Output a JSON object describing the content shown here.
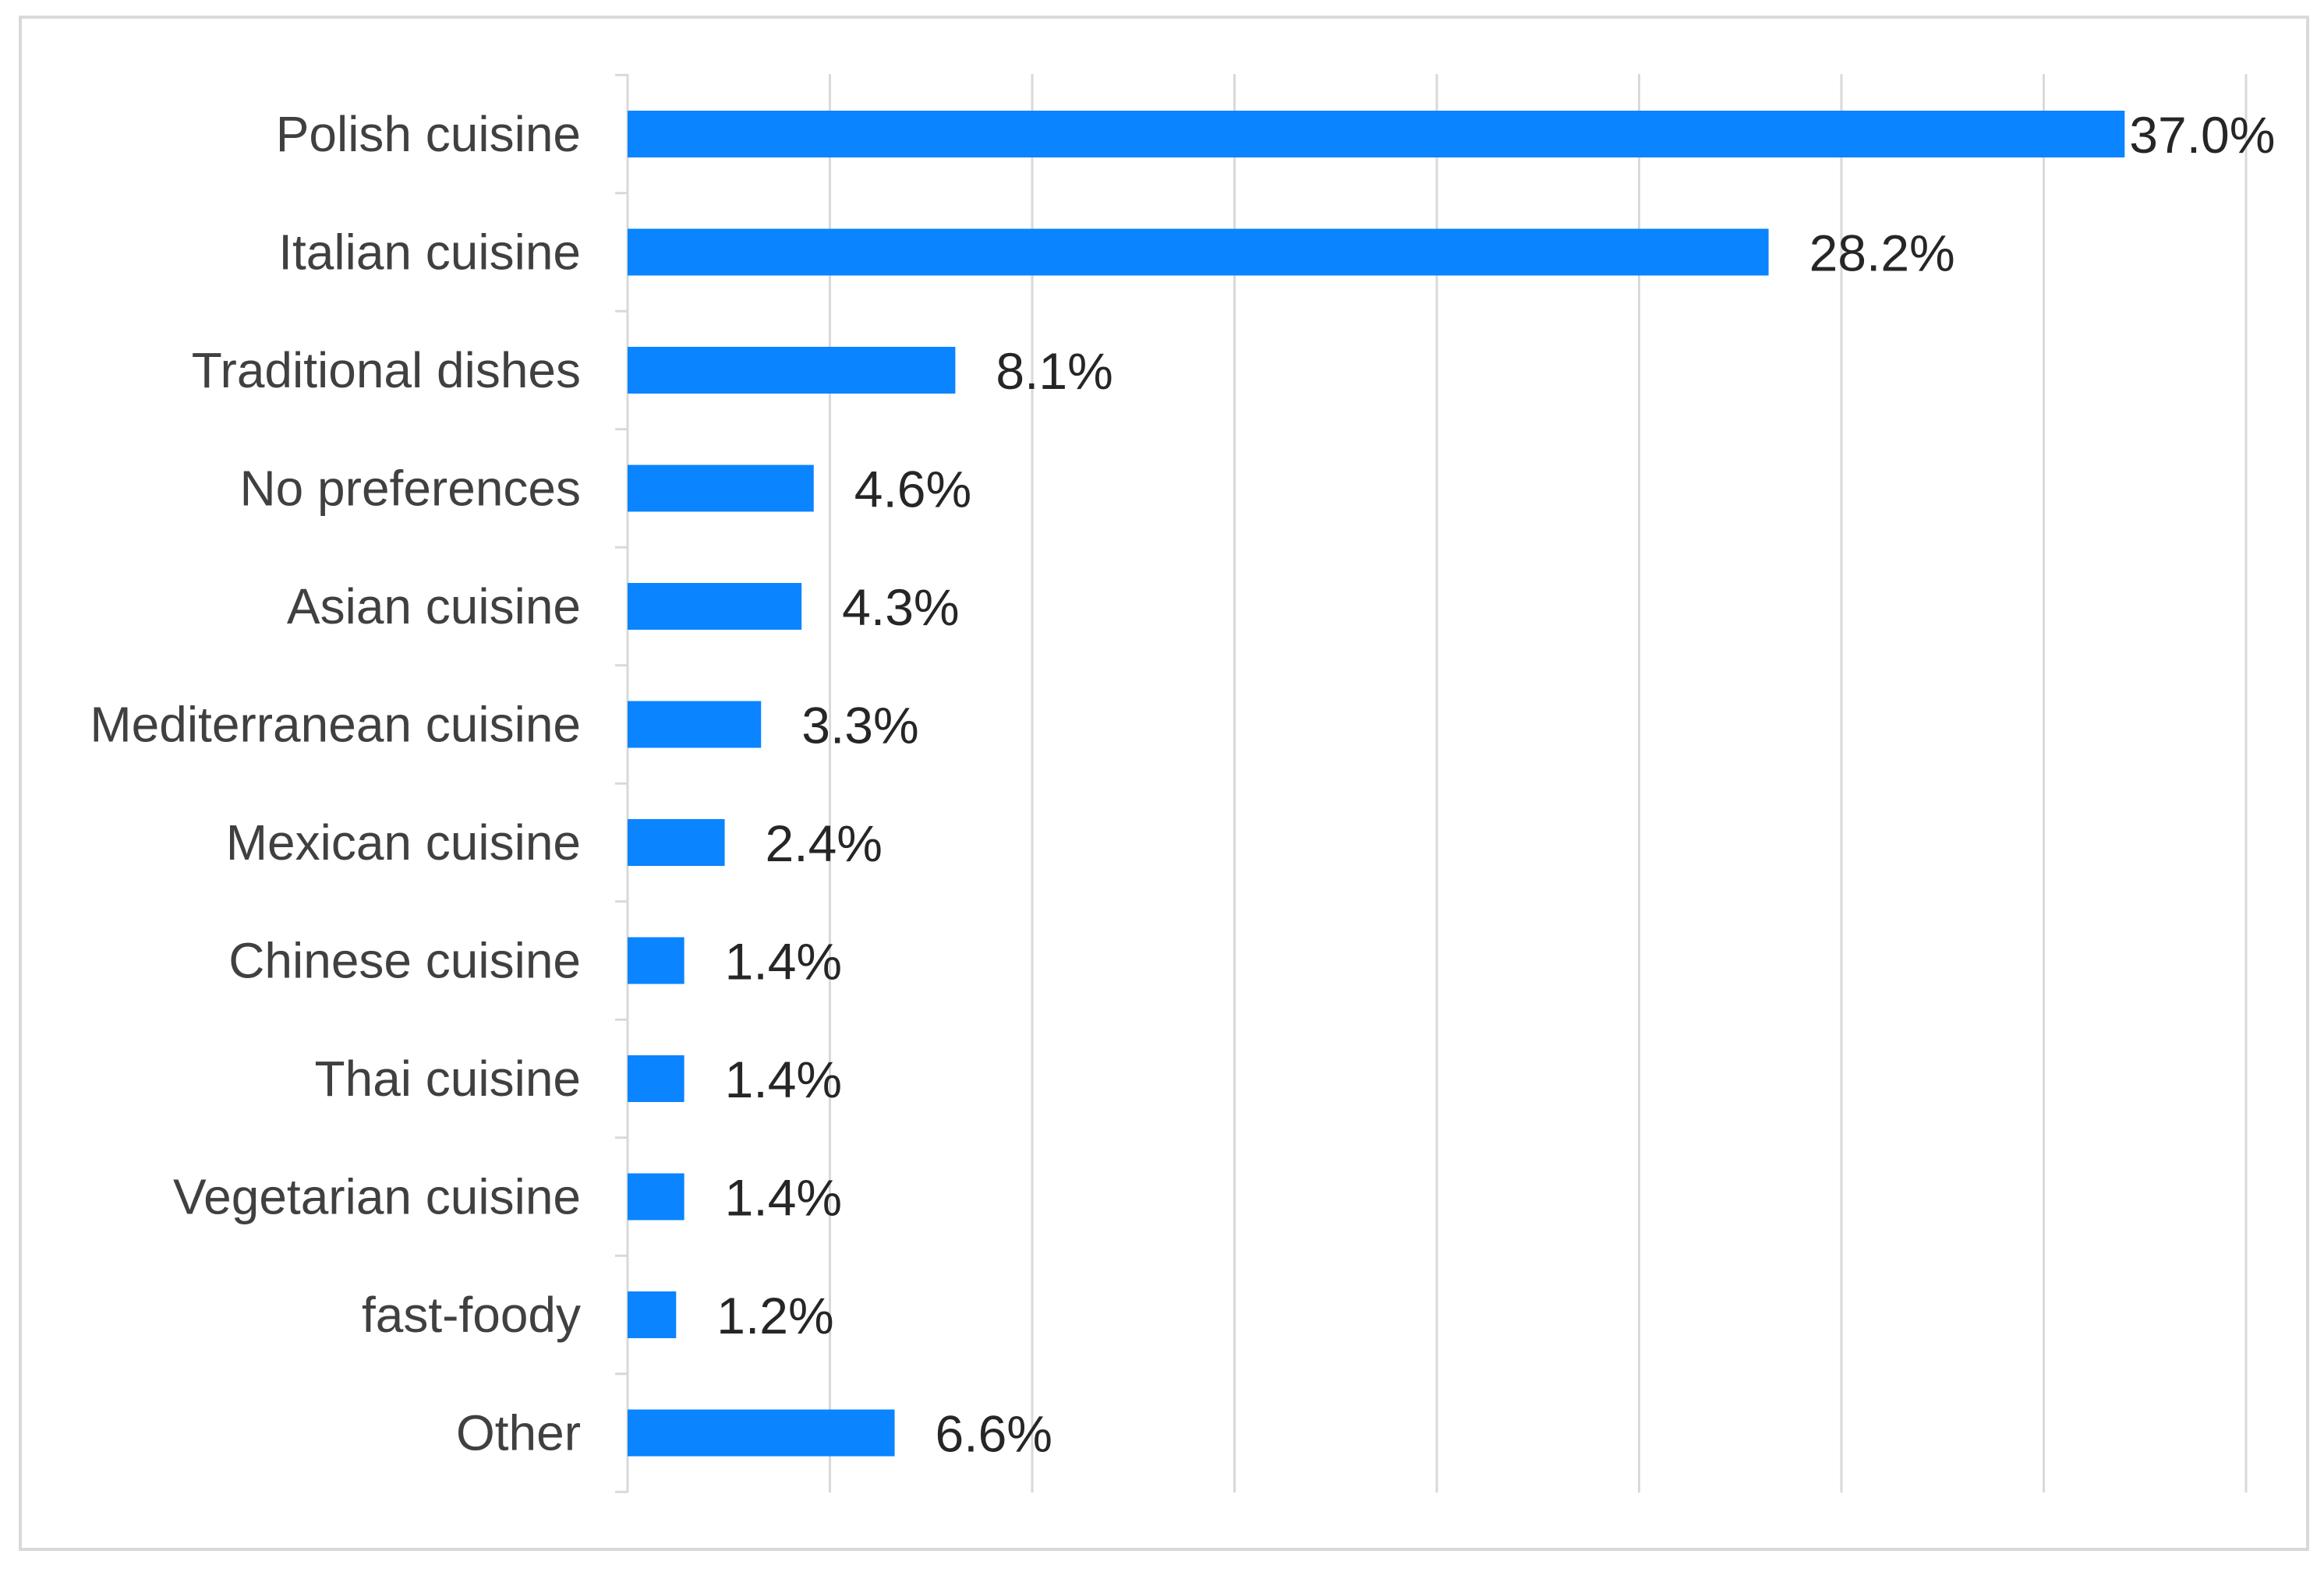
{
  "chart_data": {
    "type": "bar",
    "orientation": "horizontal",
    "categories": [
      "Polish cuisine",
      "Italian cuisine",
      "Traditional dishes",
      "No preferences",
      "Asian cuisine",
      "Mediterranean cuisine",
      "Mexican cuisine",
      "Chinese cuisine",
      "Thai cuisine",
      "Vegetarian cuisine",
      "fast-foody",
      "Other"
    ],
    "values": [
      37.0,
      28.2,
      8.1,
      4.6,
      4.3,
      3.3,
      2.4,
      1.4,
      1.4,
      1.4,
      1.2,
      6.6
    ],
    "value_labels": [
      "37.0%",
      "28.2%",
      "8.1%",
      "4.6%",
      "4.3%",
      "3.3%",
      "2.4%",
      "1.4%",
      "1.4%",
      "1.4%",
      "1.2%",
      "6.6%"
    ],
    "unit": "%",
    "title": "",
    "xlabel": "",
    "ylabel": "",
    "xlim": [
      0,
      40
    ],
    "gridlines": "vertical",
    "tick_labels_shown": false,
    "legend": "none",
    "bar_color": "#0a84ff",
    "gridline_color": "#d9d9d9"
  }
}
